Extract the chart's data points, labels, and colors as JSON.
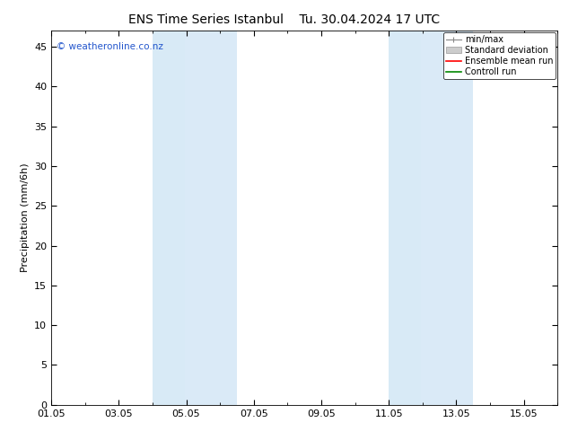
{
  "title": "ENS Time Series Istanbul",
  "title2": "Tu. 30.04.2024 17 UTC",
  "ylabel": "Precipitation (mm/6h)",
  "ylim": [
    0,
    47
  ],
  "yticks": [
    0,
    5,
    10,
    15,
    20,
    25,
    30,
    35,
    40,
    45
  ],
  "xtick_labels": [
    "01.05",
    "03.05",
    "05.05",
    "07.05",
    "09.05",
    "11.05",
    "13.05",
    "15.05"
  ],
  "xtick_positions": [
    0,
    2,
    4,
    6,
    8,
    10,
    12,
    14
  ],
  "xlim": [
    0,
    15
  ],
  "shaded_bands": [
    {
      "xstart": 3.0,
      "xend": 3.95,
      "color": "#d8eaf6"
    },
    {
      "xstart": 3.95,
      "xend": 5.5,
      "color": "#daeaf7"
    },
    {
      "xstart": 10.0,
      "xend": 10.95,
      "color": "#d8eaf6"
    },
    {
      "xstart": 10.95,
      "xend": 12.5,
      "color": "#daeaf7"
    }
  ],
  "watermark": "© weatheronline.co.nz",
  "watermark_color": "#2255cc",
  "legend_items": [
    {
      "label": "min/max",
      "type": "minmax",
      "color": "#888888"
    },
    {
      "label": "Standard deviation",
      "type": "patch",
      "color": "#cccccc"
    },
    {
      "label": "Ensemble mean run",
      "type": "line",
      "color": "#ff0000"
    },
    {
      "label": "Controll run",
      "type": "line",
      "color": "#008800"
    }
  ],
  "bg_color": "#ffffff",
  "title_fontsize": 10,
  "label_fontsize": 8,
  "tick_fontsize": 8,
  "legend_fontsize": 7,
  "watermark_fontsize": 7.5
}
